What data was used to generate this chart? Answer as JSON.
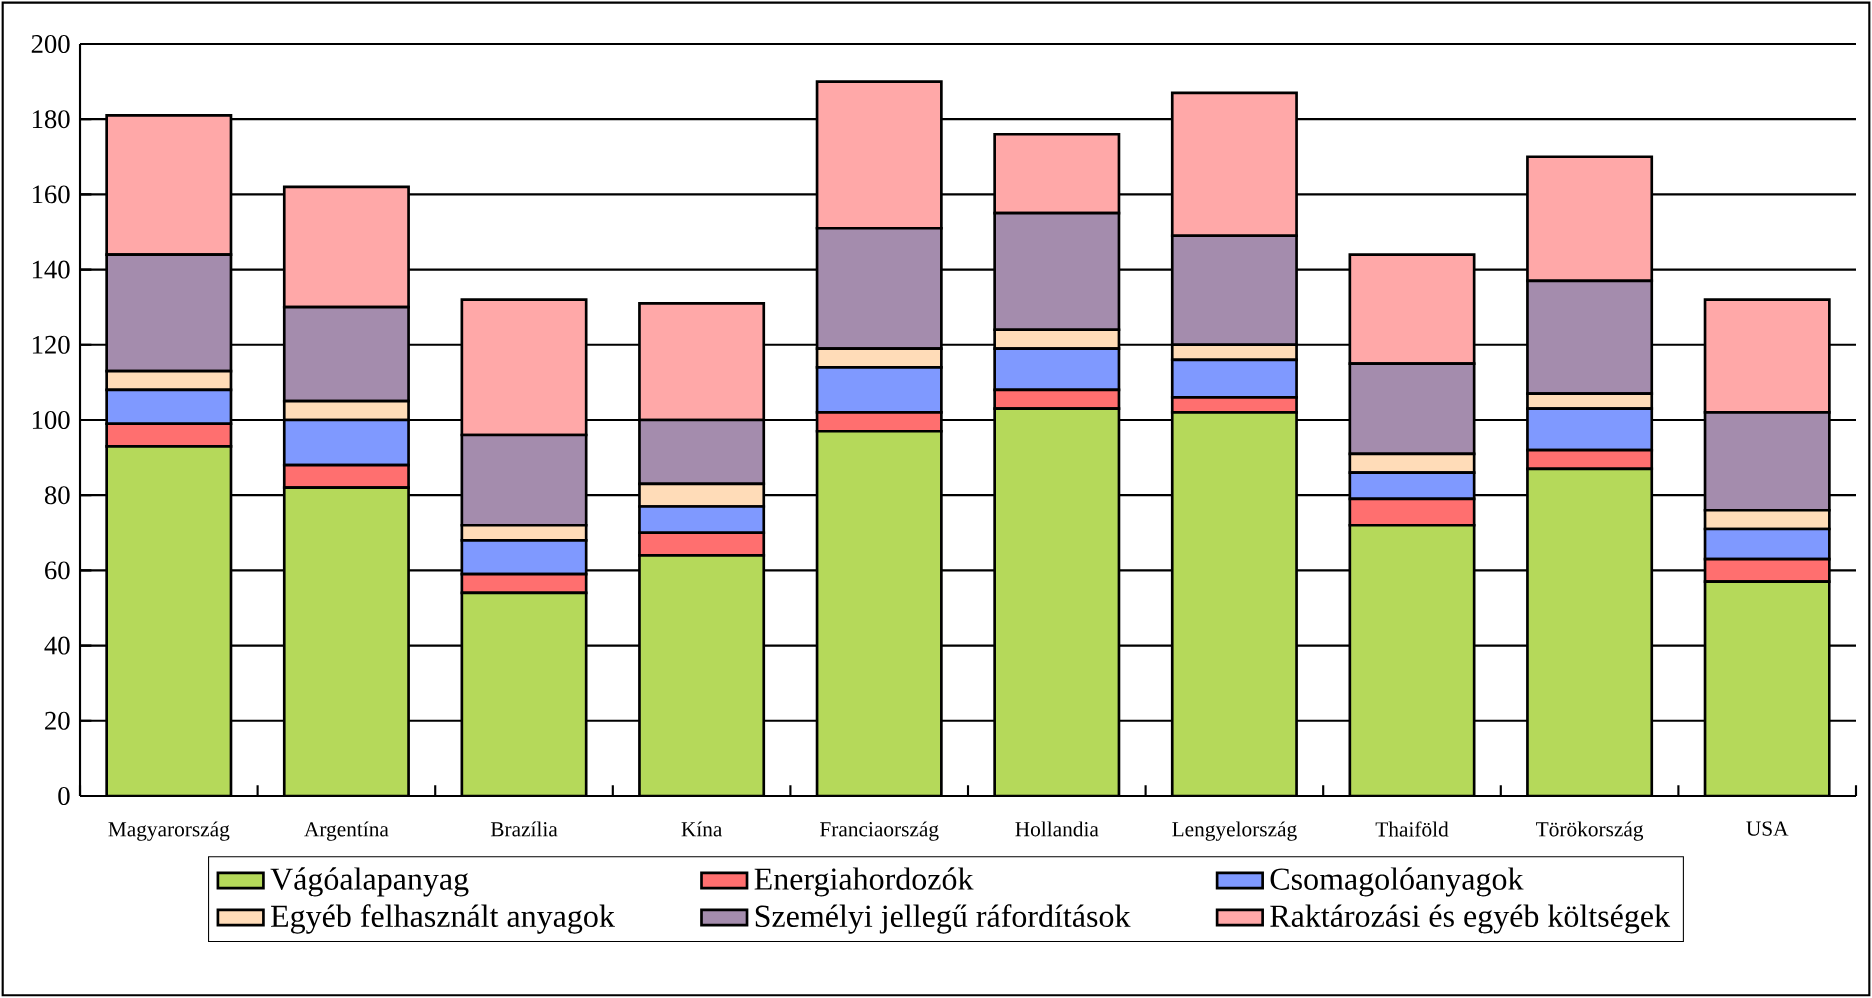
{
  "chart_data": {
    "type": "bar",
    "stacked": true,
    "grid": "y",
    "legend": "bottom",
    "categories": [
      "Magyarország",
      "Argentína",
      "Brazília",
      "Kína",
      "Franciaország",
      "Hollandia",
      "Lengyelország",
      "Thaiföld",
      "Törökország",
      "USA"
    ],
    "ylim": [
      0,
      200
    ],
    "yticks": [
      0,
      20,
      40,
      60,
      80,
      100,
      120,
      140,
      160,
      180,
      200
    ],
    "series": [
      {
        "name": "Vágóalapanyag",
        "color": "#b5d95a",
        "values": [
          93,
          82,
          54,
          64,
          97,
          103,
          102,
          72,
          87,
          57
        ]
      },
      {
        "name": "Energiahordozók",
        "color": "#ff6f6f",
        "values": [
          6,
          6,
          5,
          6,
          5,
          5,
          4,
          7,
          5,
          6
        ]
      },
      {
        "name": "Csomagolóanyagok",
        "color": "#7f99ff",
        "values": [
          9,
          12,
          9,
          7,
          12,
          11,
          10,
          7,
          11,
          8
        ]
      },
      {
        "name": "Egyéb felhasznált anyagok",
        "color": "#ffdcb8",
        "values": [
          5,
          5,
          4,
          6,
          5,
          5,
          4,
          5,
          4,
          5
        ]
      },
      {
        "name": "Személyi jellegű ráfordítások",
        "color": "#a48cad",
        "values": [
          31,
          25,
          24,
          17,
          32,
          31,
          29,
          24,
          30,
          26
        ]
      },
      {
        "name": "Raktározási és egyéb költségek",
        "color": "#ffa8a8",
        "values": [
          37,
          32,
          36,
          31,
          39,
          21,
          38,
          29,
          33,
          30
        ]
      }
    ]
  }
}
